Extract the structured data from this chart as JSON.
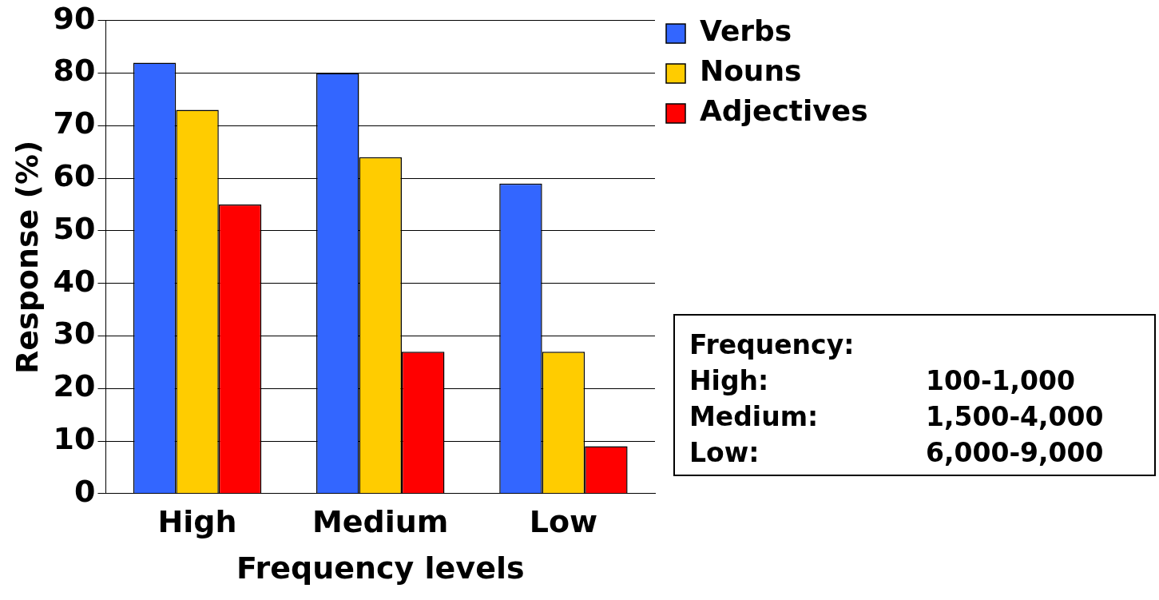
{
  "chart_data": {
    "type": "bar",
    "xlabel": "Frequency levels",
    "ylabel": "Response (%)",
    "categories": [
      "High",
      "Medium",
      "Low"
    ],
    "series": [
      {
        "name": "Verbs",
        "color": "#3366ff",
        "values": [
          82,
          80,
          59
        ]
      },
      {
        "name": "Nouns",
        "color": "#ffcc00",
        "values": [
          73,
          64,
          27
        ]
      },
      {
        "name": "Adjectives",
        "color": "#ff0000",
        "values": [
          55,
          27,
          9
        ]
      }
    ],
    "ylim": [
      0,
      90
    ],
    "yticks": [
      0,
      10,
      20,
      30,
      40,
      50,
      60,
      70,
      80,
      90
    ],
    "grid": "y",
    "legend": "top right",
    "annotations": [
      "Frequency:",
      "High:",
      "100-1,000",
      "Medium:",
      "1,500-4,000",
      "Low:",
      "6,000-9,000"
    ]
  }
}
